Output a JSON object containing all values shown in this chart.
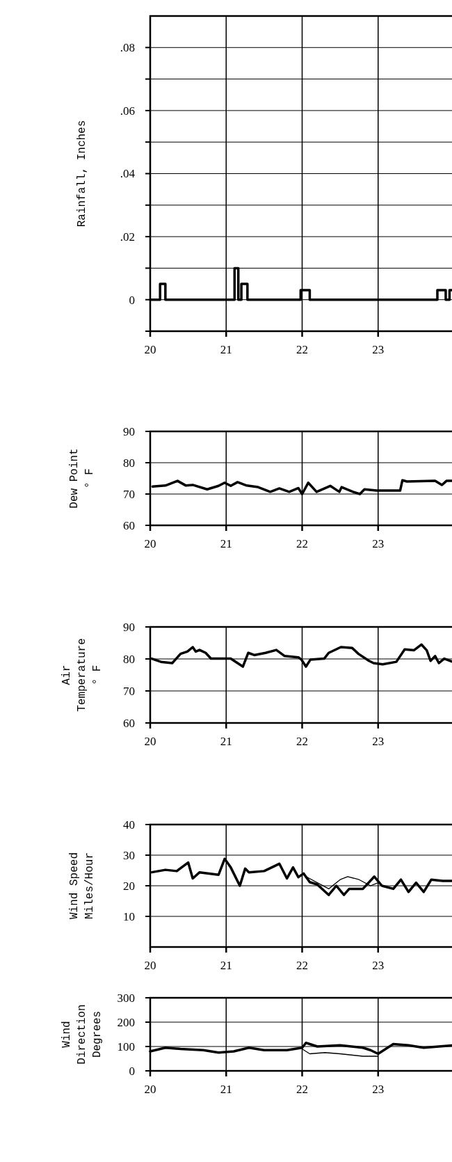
{
  "chart_data": [
    {
      "type": "step",
      "ylabel": "Rainfall, Inches",
      "xlim": [
        20,
        24
      ],
      "xticks": [
        20,
        21,
        22,
        23
      ],
      "ylim": [
        -0.01,
        0.09
      ],
      "yticks": [
        {
          "value": -0.01,
          "label": null
        },
        {
          "value": 0,
          "label": "0"
        },
        {
          "value": 0.01,
          "label": null
        },
        {
          "value": 0.02,
          "label": ".02"
        },
        {
          "value": 0.03,
          "label": null
        },
        {
          "value": 0.04,
          "label": ".04"
        },
        {
          "value": 0.05,
          "label": null
        },
        {
          "value": 0.06,
          "label": ".06"
        },
        {
          "value": 0.07,
          "label": null
        },
        {
          "value": 0.08,
          "label": ".08"
        }
      ],
      "grid": true,
      "series": [
        {
          "color": "#000000",
          "x": [
            20,
            20.13,
            20.2,
            21.11,
            21.16,
            21.2,
            21.28,
            21.98,
            22.1,
            23.78,
            23.89,
            23.94,
            23.98
          ],
          "values": [
            0,
            0.005,
            0,
            0.01,
            0,
            0.005,
            0,
            0.003,
            0,
            0.003,
            0,
            0.003,
            0.003
          ]
        }
      ]
    },
    {
      "type": "line",
      "ylabel": "Dew Point\n° F",
      "xlim": [
        20,
        24
      ],
      "xticks": [
        20,
        21,
        22,
        23
      ],
      "ylim": [
        60,
        90
      ],
      "yticks": [
        60,
        70,
        80,
        90
      ],
      "grid": true,
      "series": [
        {
          "color": "#000000",
          "x": [
            20.03,
            20.2,
            20.36,
            20.47,
            20.56,
            20.75,
            20.9,
            20.98,
            21.06,
            21.15,
            21.27,
            21.42,
            21.58,
            21.7,
            21.83,
            21.95,
            22.0,
            22.08,
            22.19,
            22.37,
            22.49,
            22.52,
            22.67,
            22.76,
            22.82,
            22.98,
            23.29,
            23.32,
            23.38,
            23.75,
            23.84,
            23.9,
            23.98
          ],
          "values": [
            72.4,
            72.7,
            74.2,
            72.7,
            72.9,
            71.5,
            72.6,
            73.6,
            72.6,
            73.8,
            72.7,
            72.2,
            70.7,
            71.8,
            70.7,
            71.9,
            70,
            73.6,
            70.7,
            72.6,
            70.7,
            72.2,
            70.7,
            70,
            71.5,
            71.1,
            71.1,
            74.4,
            74,
            74.2,
            72.9,
            74.2,
            74.2
          ]
        }
      ]
    },
    {
      "type": "line",
      "ylabel": "Air\nTemperature\n° F",
      "xlim": [
        20,
        24
      ],
      "xticks": [
        20,
        21,
        22,
        23
      ],
      "ylim": [
        60,
        90
      ],
      "yticks": [
        60,
        70,
        80,
        90
      ],
      "grid": true,
      "series": [
        {
          "color": "#000000",
          "x": [
            20.02,
            20.14,
            20.29,
            20.4,
            20.49,
            20.56,
            20.6,
            20.65,
            20.73,
            20.8,
            21.06,
            21.22,
            21.29,
            21.37,
            21.52,
            21.66,
            21.77,
            21.95,
            21.99,
            22.05,
            22.11,
            22.29,
            22.35,
            22.51,
            22.66,
            22.74,
            22.88,
            22.94,
            23.06,
            23.24,
            23.35,
            23.47,
            23.57,
            23.64,
            23.69,
            23.75,
            23.8,
            23.87,
            23.98
          ],
          "values": [
            80.1,
            79.1,
            78.7,
            81.6,
            82.3,
            83.7,
            82.3,
            82.8,
            81.9,
            80.1,
            80.1,
            77.6,
            81.9,
            81.2,
            81.9,
            82.8,
            80.9,
            80.5,
            79.8,
            77.6,
            79.8,
            80.1,
            81.9,
            83.7,
            83.4,
            81.6,
            79.4,
            78.7,
            78.3,
            79.1,
            83,
            82.7,
            84.5,
            82.7,
            79.4,
            80.9,
            78.7,
            80.1,
            79.1
          ]
        }
      ]
    },
    {
      "type": "line",
      "ylabel": "Wind Speed\nMiles/Hour",
      "xlim": [
        20,
        24
      ],
      "xticks": [
        20,
        21,
        22,
        23
      ],
      "ylim": [
        0,
        40
      ],
      "yticks": [
        10,
        20,
        30,
        40
      ],
      "grid": true,
      "series": [
        {
          "color": "#000000",
          "x": [
            20.02,
            20.2,
            20.35,
            20.5,
            20.56,
            20.65,
            20.9,
            20.98,
            21.06,
            21.18,
            21.25,
            21.3,
            21.5,
            21.7,
            21.8,
            21.88,
            21.95,
            22.02,
            22.1,
            22.2,
            22.35,
            22.45,
            22.55,
            22.62,
            22.8,
            22.95,
            23.05,
            23.2,
            23.3,
            23.4,
            23.5,
            23.6,
            23.7,
            23.85,
            23.98
          ],
          "values": [
            24.4,
            25.2,
            24.8,
            27.6,
            22.4,
            24.4,
            23.6,
            28.8,
            26,
            20,
            25.6,
            24.4,
            24.8,
            27.2,
            22.4,
            26,
            22.8,
            24,
            21.2,
            20.4,
            17,
            20,
            17,
            19,
            19,
            23,
            20,
            19,
            22,
            18,
            21,
            18,
            22,
            21.6,
            21.6
          ]
        },
        {
          "color": "#000000",
          "x": [
            22.05,
            22.2,
            22.35,
            22.5,
            22.6,
            22.75,
            22.9,
            23.0
          ],
          "values": [
            23,
            21,
            19,
            22,
            23,
            22,
            20,
            21
          ]
        }
      ]
    },
    {
      "type": "line",
      "ylabel": "Wind\nDirection\nDegrees",
      "xlim": [
        20,
        24
      ],
      "xticks": [
        20,
        21,
        22,
        23
      ],
      "ylim": [
        0,
        300
      ],
      "yticks": [
        0,
        100,
        200,
        300
      ],
      "grid": true,
      "series": [
        {
          "color": "#000000",
          "x": [
            20.0,
            20.2,
            20.4,
            20.7,
            20.9,
            21.1,
            21.3,
            21.5,
            21.8,
            22.0,
            22.05,
            22.2,
            22.5,
            22.8,
            22.9,
            23.0,
            23.2,
            23.4,
            23.6,
            23.8,
            24.0
          ],
          "values": [
            80,
            95,
            90,
            85,
            75,
            80,
            95,
            85,
            85,
            95,
            115,
            100,
            105,
            95,
            85,
            70,
            110,
            105,
            95,
            100,
            105
          ]
        },
        {
          "color": "#000000",
          "x": [
            22.0,
            22.1,
            22.3,
            22.5,
            22.8,
            23.0
          ],
          "values": [
            90,
            70,
            75,
            70,
            60,
            60
          ]
        }
      ]
    }
  ]
}
